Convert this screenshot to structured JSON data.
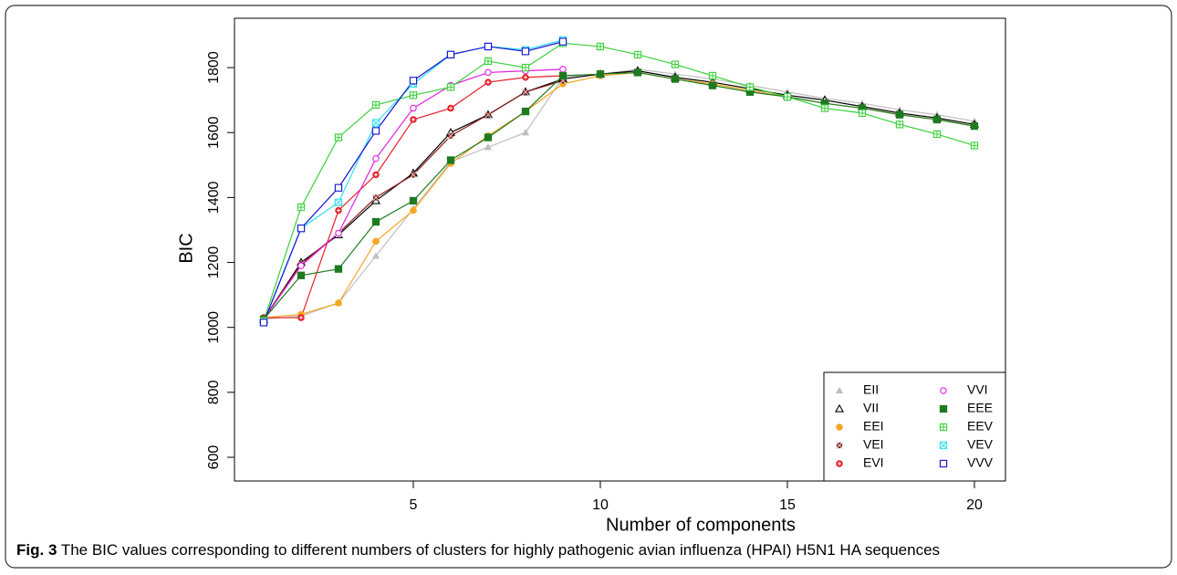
{
  "chart_data": {
    "type": "line",
    "x_label": "Number of components",
    "y_label": "BIC",
    "x": [
      1,
      2,
      3,
      4,
      5,
      6,
      7,
      8,
      9,
      10,
      11,
      12,
      13,
      14,
      15,
      16,
      17,
      18,
      19,
      20
    ],
    "xlim": [
      0.22,
      20.83
    ],
    "xticks": [
      5,
      10,
      15,
      20
    ],
    "ylim": [
      527,
      1952
    ],
    "yticks": [
      600,
      800,
      1000,
      1200,
      1400,
      1600,
      1800
    ],
    "legend": "bottom-right",
    "series": [
      {
        "name": "EII",
        "color": "#bebebe",
        "marker": "triangle-filled",
        "values": [
          1025,
          1035,
          1075,
          1220,
          1365,
          1510,
          1555,
          1600,
          1770,
          1780,
          1795,
          1780,
          1765,
          1745,
          1725,
          1705,
          1690,
          1670,
          1655,
          1635
        ]
      },
      {
        "name": "VII",
        "color": "#000000",
        "marker": "triangle-open",
        "values": [
          1025,
          1200,
          1285,
          1390,
          1475,
          1600,
          1655,
          1725,
          1765,
          1780,
          1790,
          1770,
          1755,
          1735,
          1715,
          1700,
          1680,
          1660,
          1645,
          1625
        ]
      },
      {
        "name": "EEI",
        "color": "#f5a623",
        "marker": "circle-filled",
        "values": [
          1030,
          1040,
          1075,
          1265,
          1360,
          1505,
          1590,
          1665,
          1750,
          1775,
          1785,
          1765,
          1750,
          1730,
          1710,
          1690,
          1675,
          1655,
          1640,
          1620
        ]
      },
      {
        "name": "VEI",
        "color": "#8b1a1a",
        "marker": "cross-filled",
        "values": [
          1025,
          1195,
          1290,
          1400,
          1470,
          1590,
          1655,
          1725,
          1760,
          null,
          null,
          null,
          null,
          null,
          null,
          null,
          null,
          null,
          null,
          null
        ]
      },
      {
        "name": "EVI",
        "color": "#e8202a",
        "marker": "circle-plus",
        "values": [
          1030,
          1030,
          1360,
          1470,
          1640,
          1675,
          1755,
          1770,
          1775,
          null,
          null,
          null,
          null,
          null,
          null,
          null,
          null,
          null,
          null,
          null
        ]
      },
      {
        "name": "VVI",
        "color": "#e020e0",
        "marker": "circle-open",
        "values": [
          1025,
          1190,
          1290,
          1520,
          1675,
          1745,
          1785,
          1790,
          1795,
          null,
          null,
          null,
          null,
          null,
          null,
          null,
          null,
          null,
          null,
          null
        ]
      },
      {
        "name": "EEE",
        "color": "#1f7a1f",
        "marker": "square-filled",
        "values": [
          1025,
          1160,
          1180,
          1325,
          1390,
          1515,
          1585,
          1665,
          1775,
          1780,
          1785,
          1765,
          1745,
          1725,
          1710,
          1690,
          1675,
          1655,
          1640,
          1620
        ]
      },
      {
        "name": "EEV",
        "color": "#3ad03a",
        "marker": "square-plus",
        "values": [
          1020,
          1370,
          1585,
          1685,
          1715,
          1740,
          1820,
          1800,
          1875,
          1865,
          1840,
          1810,
          1775,
          1740,
          1710,
          1675,
          1660,
          1625,
          1595,
          1560
        ]
      },
      {
        "name": "VEV",
        "color": "#30e0f0",
        "marker": "square-cross",
        "values": [
          1015,
          1305,
          1385,
          1630,
          1750,
          1840,
          1865,
          1855,
          1885,
          null,
          null,
          null,
          null,
          null,
          null,
          null,
          null,
          null,
          null,
          null
        ]
      },
      {
        "name": "VVV",
        "color": "#1010d0",
        "marker": "square-open",
        "values": [
          1015,
          1305,
          1430,
          1605,
          1760,
          1840,
          1865,
          1850,
          1880,
          null,
          null,
          null,
          null,
          null,
          null,
          null,
          null,
          null,
          null,
          null
        ]
      }
    ]
  },
  "caption": {
    "label": "Fig. 3",
    "text": "The BIC values corresponding to different numbers of clusters for highly pathogenic avian influenza (HPAI) H5N1 HA sequences"
  }
}
